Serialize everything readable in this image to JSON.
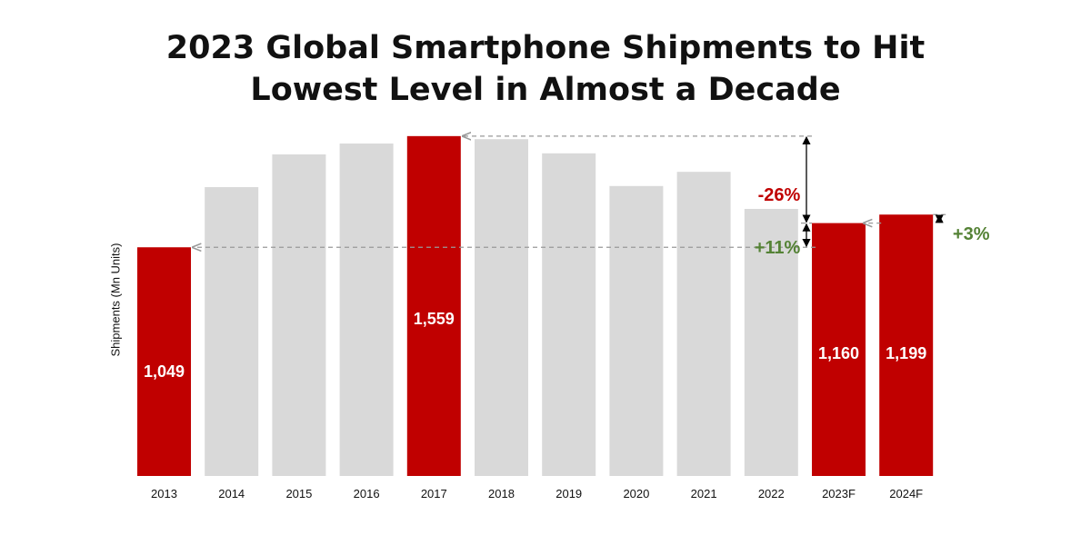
{
  "title": {
    "line1": "2023 Global Smartphone Shipments to Hit",
    "line2": "Lowest Level in Almost a Decade"
  },
  "chart_data": {
    "type": "bar",
    "ylabel": "Shipments (Mn Units)",
    "categories": [
      "2013",
      "2014",
      "2015",
      "2016",
      "2017",
      "2018",
      "2019",
      "2020",
      "2021",
      "2022",
      "2023F",
      "2024F"
    ],
    "values": [
      1049,
      1325,
      1475,
      1525,
      1559,
      1545,
      1480,
      1330,
      1395,
      1225,
      1160,
      1199
    ],
    "labels": [
      "1,049",
      "",
      "",
      "",
      "1,559",
      "",
      "",
      "",
      "",
      "",
      "1,160",
      "1,199"
    ],
    "highlighted": [
      true,
      false,
      false,
      false,
      true,
      false,
      false,
      false,
      false,
      false,
      true,
      true
    ],
    "ylim": [
      0,
      1650
    ],
    "grid": false,
    "annotations": {
      "minus26": "-26%",
      "plus11": "+11%",
      "plus3": "+3%"
    }
  },
  "colors": {
    "highlight": "#c00000",
    "normal": "#d9d9d9",
    "negative": "#c00000",
    "positive": "#548235"
  }
}
